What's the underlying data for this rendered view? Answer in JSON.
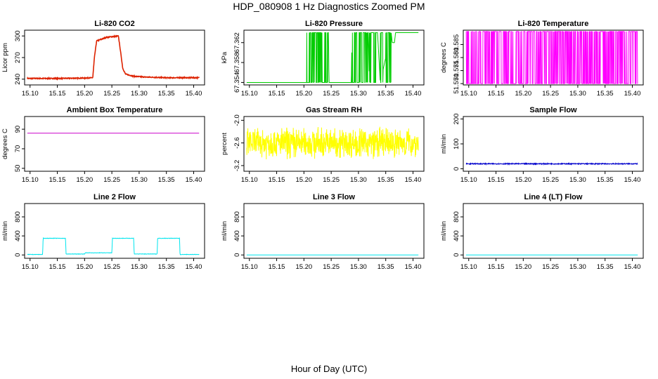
{
  "title": "HDP_080908  1 Hz Diagnostics Zoomed PM",
  "x_caption": "Hour of Day (UTC)",
  "chart_data": [
    {
      "type": "line",
      "title": "Li-820 CO2",
      "ylabel": "Licor ppm",
      "color": "#dd2200",
      "xlim": [
        15.09,
        15.42
      ],
      "ylim": [
        232,
        308
      ],
      "xticks": [
        "15.10",
        "15.15",
        "15.20",
        "15.25",
        "15.30",
        "15.35",
        "15.40"
      ],
      "yticks": [
        "240",
        "270",
        "300"
      ],
      "x": [
        15.095,
        15.15,
        15.2,
        15.215,
        15.218,
        15.222,
        15.24,
        15.262,
        15.266,
        15.27,
        15.275,
        15.29,
        15.31,
        15.35,
        15.41
      ],
      "y": [
        241,
        241,
        241.5,
        242,
        270,
        293,
        298,
        300,
        278,
        255,
        247,
        244,
        243,
        242,
        242
      ],
      "noise": 0.6
    },
    {
      "type": "line",
      "title": "Li-820 Pressure",
      "ylabel": "kPa",
      "color": "#00cc00",
      "xlim": [
        15.09,
        15.42
      ],
      "ylim": [
        67.3535,
        67.3645
      ],
      "xticks": [
        "15.10",
        "15.15",
        "15.20",
        "15.25",
        "15.30",
        "15.35",
        "15.40"
      ],
      "yticks": [
        "67.354",
        "67.358",
        "67.362"
      ],
      "levels": [
        67.354,
        67.364
      ],
      "x": [
        15.095,
        15.205,
        15.206,
        15.245,
        15.246,
        15.287,
        15.288,
        15.318,
        15.32,
        15.335,
        15.34,
        15.36,
        15.362,
        15.366,
        15.368,
        15.41
      ],
      "y": [
        67.354,
        67.354,
        67.364,
        67.364,
        67.354,
        67.354,
        67.364,
        67.364,
        67.354,
        67.364,
        67.354,
        67.364,
        67.362,
        67.362,
        67.364,
        67.364
      ],
      "switch_bands": [
        [
          15.205,
          15.245,
          0.55
        ],
        [
          15.288,
          15.318,
          0.45
        ],
        [
          15.32,
          15.335,
          0.3
        ],
        [
          15.34,
          15.345,
          0.4
        ],
        [
          15.35,
          15.36,
          0.35
        ]
      ]
    },
    {
      "type": "line",
      "title": "Li-820 Temperature",
      "ylabel": "degrees C",
      "color": "#ff00ff",
      "xlim": [
        15.09,
        15.42
      ],
      "ylim": [
        51.5695,
        51.5905
      ],
      "xticks": [
        "15.10",
        "15.15",
        "15.20",
        "15.25",
        "15.30",
        "15.35",
        "15.40"
      ],
      "yticks": [
        "51.570",
        "51.575",
        "51.580",
        "51.585"
      ],
      "levels": [
        51.57,
        51.59
      ],
      "switch_probability": 0.35
    },
    {
      "type": "line",
      "title": "Ambient Box Temperature",
      "ylabel": "degrees C",
      "color": "#cc00cc",
      "xlim": [
        15.09,
        15.42
      ],
      "ylim": [
        47,
        103
      ],
      "xticks": [
        "15.10",
        "15.15",
        "15.20",
        "15.25",
        "15.30",
        "15.35",
        "15.40"
      ],
      "yticks": [
        "50",
        "70",
        "90"
      ],
      "x": [
        15.095,
        15.41
      ],
      "y": [
        86,
        86
      ]
    },
    {
      "type": "line",
      "title": "Gas Stream RH",
      "ylabel": "percent",
      "color": "#ffff00",
      "xlim": [
        15.09,
        15.42
      ],
      "ylim": [
        -3.35,
        -1.9
      ],
      "xticks": [
        "15.10",
        "15.15",
        "15.20",
        "15.25",
        "15.30",
        "15.35",
        "15.40"
      ],
      "yticks": [
        "-3.2",
        "-2.6",
        "-2.0"
      ],
      "mean": -2.6,
      "noise_amplitude": 0.33,
      "min": -3.3,
      "max": -2.0
    },
    {
      "type": "line",
      "title": "Sample Flow",
      "ylabel": "ml/min",
      "color": "#0000cc",
      "xlim": [
        15.09,
        15.42
      ],
      "ylim": [
        -10,
        210
      ],
      "xticks": [
        "15.10",
        "15.15",
        "15.20",
        "15.25",
        "15.30",
        "15.35",
        "15.40"
      ],
      "yticks": [
        "0",
        "100",
        "200"
      ],
      "x": [
        15.095,
        15.41
      ],
      "y": [
        20,
        20
      ],
      "noise": 2
    },
    {
      "type": "line",
      "title": "Line 2 Flow",
      "ylabel": "ml/min",
      "color": "#00e5ee",
      "xlim": [
        15.09,
        15.42
      ],
      "ylim": [
        -70,
        1080
      ],
      "xticks": [
        "15.10",
        "15.15",
        "15.20",
        "15.25",
        "15.30",
        "15.35",
        "15.40"
      ],
      "yticks": [
        "0",
        "400",
        "800"
      ],
      "x": [
        15.095,
        15.123,
        15.124,
        15.165,
        15.166,
        15.2,
        15.201,
        15.25,
        15.251,
        15.29,
        15.291,
        15.333,
        15.334,
        15.374,
        15.375,
        15.41
      ],
      "y": [
        10,
        10,
        350,
        350,
        20,
        20,
        45,
        45,
        350,
        350,
        20,
        20,
        350,
        350,
        10,
        10
      ],
      "noise": 4
    },
    {
      "type": "line",
      "title": "Line 3 Flow",
      "ylabel": "ml/min",
      "color": "#00e5ee",
      "xlim": [
        15.09,
        15.42
      ],
      "ylim": [
        -70,
        1080
      ],
      "xticks": [
        "15.10",
        "15.15",
        "15.20",
        "15.25",
        "15.30",
        "15.35",
        "15.40"
      ],
      "yticks": [
        "0",
        "400",
        "800"
      ],
      "x": [
        15.095,
        15.41
      ],
      "y": [
        0,
        0
      ]
    },
    {
      "type": "line",
      "title": "Line 4 (LT) Flow",
      "ylabel": "ml/min",
      "color": "#00e5ee",
      "xlim": [
        15.09,
        15.42
      ],
      "ylim": [
        -70,
        1080
      ],
      "xticks": [
        "15.10",
        "15.15",
        "15.20",
        "15.25",
        "15.30",
        "15.35",
        "15.40"
      ],
      "yticks": [
        "0",
        "400",
        "800"
      ],
      "x": [
        15.095,
        15.41
      ],
      "y": [
        0,
        0
      ]
    }
  ]
}
